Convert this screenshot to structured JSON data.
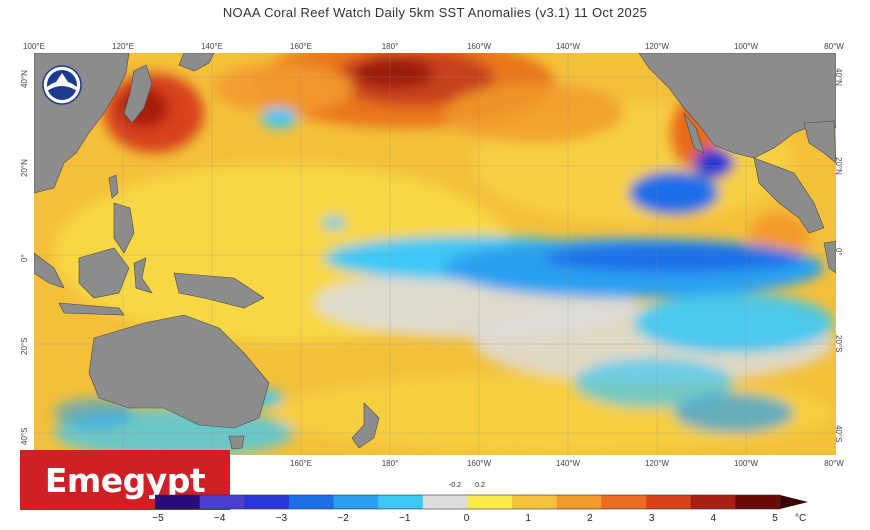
{
  "title": "NOAA Coral Reef Watch Daily 5km SST Anomalies  (v3.1)   11 Oct 2025",
  "top_lon_labels": [
    "100°E",
    "120°E",
    "140°E",
    "160°E",
    "180°",
    "160°W",
    "140°W",
    "120°W",
    "100°W",
    "80°W"
  ],
  "bottom_lon_labels": [
    "160°E",
    "180°",
    "160°W",
    "140°W",
    "120°W",
    "100°W",
    "80°W"
  ],
  "left_lat_labels": [
    "40°N",
    "20°N",
    "0°",
    "20°S",
    "40°S"
  ],
  "right_lat_labels": [
    "40°N",
    "20°N",
    "0°",
    "20°S",
    "40°S"
  ],
  "brand_label": "Emegypt",
  "logo_icon": "noaa-logo-icon",
  "colorbar": {
    "labels": [
      "−5",
      "−4",
      "−3",
      "−2",
      "−1",
      "0",
      "1",
      "2",
      "3",
      "4",
      "5"
    ],
    "mini_labels": [
      "-0.2",
      "0.2"
    ],
    "unit": "°C",
    "colors": [
      "#2b0a7a",
      "#4b3fd0",
      "#2a36d8",
      "#1d6ee8",
      "#2aa0f0",
      "#3cc8f5",
      "#dcdcdc",
      "#fbe84a",
      "#f6c13a",
      "#f39a2b",
      "#ea6a1f",
      "#d8431a",
      "#a81e10",
      "#6a0b06"
    ]
  }
}
